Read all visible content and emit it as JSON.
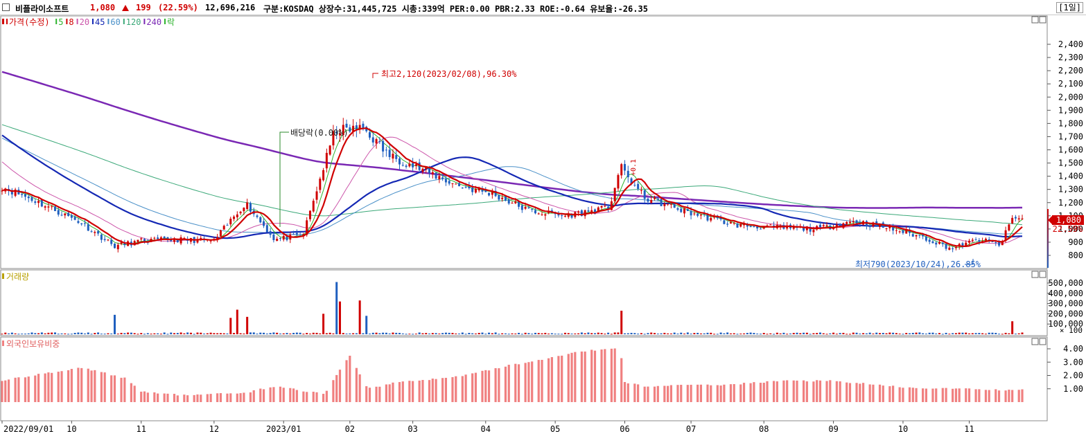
{
  "header": {
    "name": "비플라이소프트",
    "price": "1,080",
    "change": "199",
    "change_pct": "(22.59%)",
    "volume": "12,696,216",
    "info": "구분:KOSDAQ 상장수:31,445,725 시총:339억 PER:0.00 PBR:2.33 ROE:-0.64 유보율:-26.35",
    "period": "[1일]"
  },
  "colors": {
    "up": "#d00000",
    "down": "#1f5fbf",
    "ma5": "#2db32d",
    "ma8": "#d00000",
    "ma20": "#cc55aa",
    "ma45": "#1428b4",
    "ma60": "#4a90c8",
    "ma120": "#3aa878",
    "ma240": "#7a28b4",
    "foreign": "#f08080",
    "volume_label": "#b8a000"
  },
  "legend": {
    "price_label": "가격(수정)",
    "items": [
      {
        "label": "5",
        "color": "#2db32d"
      },
      {
        "label": "8",
        "color": "#d00000"
      },
      {
        "label": "20",
        "color": "#cc55aa"
      },
      {
        "label": "45",
        "color": "#1428b4"
      },
      {
        "label": "60",
        "color": "#4a90c8"
      },
      {
        "label": "120",
        "color": "#3aa878"
      },
      {
        "label": "240",
        "color": "#7a28b4"
      },
      {
        "label": "락",
        "color": "#2db32d"
      }
    ]
  },
  "annotations": {
    "high": "최고2,120(2023/02/08),96.30%",
    "low": "최저790(2023/10/24),26.85%",
    "dividend": "배당락(0.00%)",
    "split_mark": "+0.1"
  },
  "chart_data": [
    {
      "type": "candlestick",
      "title": "",
      "ylim": [
        700,
        2500
      ],
      "y_ticks": [
        "2,400",
        "2,300",
        "2,200",
        "2,100",
        "2,000",
        "1,900",
        "1,800",
        "1,700",
        "1,600",
        "1,500",
        "1,400",
        "1,300",
        "1,200",
        "1,100",
        "1,000",
        "900",
        "800"
      ],
      "x_ticks": [
        "2022/09/01",
        "10",
        "11",
        "12",
        "2023/01",
        "02",
        "03",
        "04",
        "05",
        "06",
        "07",
        "08",
        "09",
        "10",
        "11"
      ],
      "last_price_tag": "1,080",
      "last_pct_tag": "22.59%",
      "close_trend": [
        {
          "x": "2022/09/01",
          "y": 1320
        },
        {
          "x": "09/15",
          "y": 1220
        },
        {
          "x": "10/05",
          "y": 1050
        },
        {
          "x": "10/20",
          "y": 870
        },
        {
          "x": "11/01",
          "y": 910
        },
        {
          "x": "11/15",
          "y": 920
        },
        {
          "x": "12/01",
          "y": 910
        },
        {
          "x": "12/15",
          "y": 1200
        },
        {
          "x": "12/28",
          "y": 920
        },
        {
          "x": "2023/01/10",
          "y": 950
        },
        {
          "x": "01/25",
          "y": 1750
        },
        {
          "x": "02/08",
          "y": 1760
        },
        {
          "x": "02/20",
          "y": 1560
        },
        {
          "x": "03/05",
          "y": 1450
        },
        {
          "x": "03/20",
          "y": 1330
        },
        {
          "x": "04/05",
          "y": 1260
        },
        {
          "x": "04/20",
          "y": 1140
        },
        {
          "x": "05/05",
          "y": 1100
        },
        {
          "x": "05/25",
          "y": 1160
        },
        {
          "x": "05/30",
          "y": 1470
        },
        {
          "x": "06/10",
          "y": 1240
        },
        {
          "x": "06/30",
          "y": 1130
        },
        {
          "x": "07/20",
          "y": 1030
        },
        {
          "x": "08/05",
          "y": 1010
        },
        {
          "x": "08/25",
          "y": 1000
        },
        {
          "x": "09/10",
          "y": 1060
        },
        {
          "x": "09/25",
          "y": 1010
        },
        {
          "x": "10/10",
          "y": 940
        },
        {
          "x": "10/24",
          "y": 850
        },
        {
          "x": "11/05",
          "y": 920
        },
        {
          "x": "11/15",
          "y": 880
        },
        {
          "x": "11/20",
          "y": 1080
        }
      ]
    },
    {
      "type": "bar",
      "title": "거래량",
      "ylim": [
        0,
        550000
      ],
      "y_ticks": [
        "500,000",
        "400,000",
        "300,000",
        "200,000",
        "100,000"
      ],
      "unit": "× 100",
      "spikes": [
        {
          "x": "10/20",
          "value": 190000
        },
        {
          "x": "12/08",
          "value": 160000
        },
        {
          "x": "12/12",
          "value": 240000
        },
        {
          "x": "12/16",
          "value": 170000
        },
        {
          "x": "2023/01/20",
          "value": 200000
        },
        {
          "x": "01/26",
          "value": 510000
        },
        {
          "x": "01/28",
          "value": 320000
        },
        {
          "x": "02/06",
          "value": 330000
        },
        {
          "x": "02/09",
          "value": 180000
        },
        {
          "x": "05/30",
          "value": 230000
        },
        {
          "x": "05/31",
          "value": 150000
        },
        {
          "x": "11/20",
          "value": 127000
        }
      ]
    },
    {
      "type": "bar",
      "title": "외국인보유비중",
      "ylim": [
        0,
        4.5
      ],
      "y_ticks": [
        "4.00",
        "3.00",
        "2.00",
        "1.00"
      ],
      "levels": [
        {
          "x": "2022/09/01",
          "y": 1.6
        },
        {
          "x": "09/25",
          "y": 2.3
        },
        {
          "x": "10/05",
          "y": 2.6
        },
        {
          "x": "10/25",
          "y": 1.8
        },
        {
          "x": "11/01",
          "y": 0.8
        },
        {
          "x": "11/20",
          "y": 0.5
        },
        {
          "x": "12/15",
          "y": 0.7
        },
        {
          "x": "12/28",
          "y": 1.2
        },
        {
          "x": "2023/01/20",
          "y": 0.6
        },
        {
          "x": "02/01",
          "y": 3.5
        },
        {
          "x": "02/10",
          "y": 1.0
        },
        {
          "x": "02/25",
          "y": 1.5
        },
        {
          "x": "03/20",
          "y": 1.9
        },
        {
          "x": "04/10",
          "y": 2.7
        },
        {
          "x": "05/01",
          "y": 3.4
        },
        {
          "x": "05/10",
          "y": 3.8
        },
        {
          "x": "05/30",
          "y": 4.0
        },
        {
          "x": "06/01",
          "y": 1.5
        },
        {
          "x": "06/10",
          "y": 1.2
        },
        {
          "x": "07/15",
          "y": 1.3
        },
        {
          "x": "08/10",
          "y": 1.6
        },
        {
          "x": "09/01",
          "y": 1.6
        },
        {
          "x": "10/01",
          "y": 1.1
        },
        {
          "x": "11/20",
          "y": 0.9
        }
      ]
    }
  ]
}
